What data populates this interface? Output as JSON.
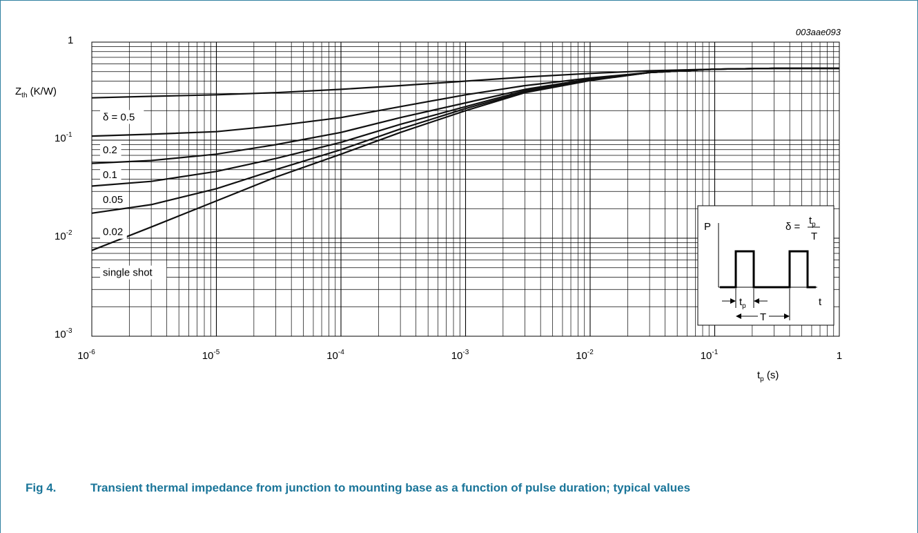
{
  "chart_data": {
    "type": "line",
    "figure_ref": "003aae093",
    "ylabel_main": "Z",
    "ylabel_sub": "th",
    "ylabel_unit": " (K/W)",
    "xlabel_main": "t",
    "xlabel_sub": "p",
    "xlabel_unit": " (s)",
    "x_scale": "log",
    "y_scale": "log",
    "xlim": [
      1e-06,
      1
    ],
    "ylim": [
      0.001,
      1
    ],
    "grid": true,
    "x_ticks": [
      {
        "base": "10",
        "exp": "-6"
      },
      {
        "base": "10",
        "exp": "-5"
      },
      {
        "base": "10",
        "exp": "-4"
      },
      {
        "base": "10",
        "exp": "-3"
      },
      {
        "base": "10",
        "exp": "-2"
      },
      {
        "base": "10",
        "exp": "-1"
      },
      {
        "base": "1",
        "exp": ""
      }
    ],
    "y_ticks": [
      {
        "base": "10",
        "exp": "-3"
      },
      {
        "base": "10",
        "exp": "-2"
      },
      {
        "base": "10",
        "exp": "-1"
      },
      {
        "base": "1",
        "exp": ""
      }
    ],
    "x": [
      1e-06,
      3e-06,
      1e-05,
      3e-05,
      0.0001,
      0.0003,
      0.001,
      0.003,
      0.01,
      0.03,
      0.1,
      0.3,
      1
    ],
    "series": [
      {
        "name": "δ = 0.5",
        "values": [
          0.27,
          0.28,
          0.29,
          0.305,
          0.33,
          0.36,
          0.4,
          0.44,
          0.48,
          0.51,
          0.53,
          0.54,
          0.54
        ]
      },
      {
        "name": "0.2",
        "values": [
          0.11,
          0.115,
          0.122,
          0.14,
          0.17,
          0.22,
          0.29,
          0.36,
          0.43,
          0.49,
          0.53,
          0.54,
          0.54
        ]
      },
      {
        "name": "0.1",
        "values": [
          0.058,
          0.062,
          0.072,
          0.09,
          0.12,
          0.17,
          0.24,
          0.33,
          0.42,
          0.49,
          0.53,
          0.54,
          0.54
        ]
      },
      {
        "name": "0.05",
        "values": [
          0.034,
          0.038,
          0.048,
          0.065,
          0.095,
          0.145,
          0.22,
          0.32,
          0.41,
          0.49,
          0.53,
          0.54,
          0.54
        ]
      },
      {
        "name": "0.02",
        "values": [
          0.018,
          0.022,
          0.032,
          0.05,
          0.08,
          0.13,
          0.21,
          0.31,
          0.41,
          0.49,
          0.53,
          0.54,
          0.54
        ]
      },
      {
        "name": "single shot",
        "values": [
          0.0075,
          0.013,
          0.024,
          0.042,
          0.072,
          0.12,
          0.2,
          0.305,
          0.405,
          0.49,
          0.53,
          0.54,
          0.54
        ]
      }
    ],
    "inset": {
      "p_label": "P",
      "t_label": "t",
      "delta_formula": "δ =",
      "frac_num": "t",
      "frac_num_sub": "p",
      "frac_den": "T",
      "tp_main": "t",
      "tp_sub": "p",
      "period_label": "T"
    }
  },
  "caption": {
    "fig_label": "Fig 4.",
    "text": "Transient thermal impedance from junction to mounting base as a function of pulse duration; typical values"
  }
}
